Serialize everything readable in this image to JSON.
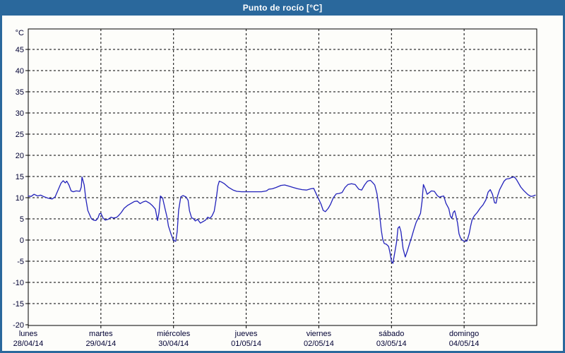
{
  "header": {
    "title": "Punto de rocío [°C]"
  },
  "colors": {
    "titlebar_bg": "#2a689c",
    "window_border": "#2a689c",
    "plot_bg": "#fdfdfa",
    "grid": "#000000",
    "axis_text": "#000033",
    "series_line": "#2222bb",
    "title_text": "#ffffff"
  },
  "chart_data": {
    "type": "line",
    "title": "Punto de rocío [°C]",
    "y_unit": "°C",
    "ylabel": "",
    "xlabel": "",
    "ylim": [
      -20,
      50
    ],
    "y_ticks": [
      45,
      40,
      35,
      30,
      25,
      20,
      15,
      10,
      5,
      0,
      -5,
      -10,
      -15,
      -20
    ],
    "grid": "dashed",
    "legend": "none",
    "x_days": [
      {
        "name": "lunes",
        "date": "28/04/14"
      },
      {
        "name": "martes",
        "date": "29/04/14"
      },
      {
        "name": "miércoles",
        "date": "30/04/14"
      },
      {
        "name": "jueves",
        "date": "01/05/14"
      },
      {
        "name": "viernes",
        "date": "02/05/14"
      },
      {
        "name": "sábado",
        "date": "03/05/14"
      },
      {
        "name": "domingo",
        "date": "04/05/14"
      }
    ],
    "series": [
      {
        "name": "Punto de rocío",
        "color": "#2222bb",
        "x_unit": "days_from_start",
        "points": [
          [
            0.0,
            10.4
          ],
          [
            0.04,
            10.3
          ],
          [
            0.08,
            10.8
          ],
          [
            0.13,
            10.4
          ],
          [
            0.17,
            10.6
          ],
          [
            0.22,
            10.2
          ],
          [
            0.27,
            9.9
          ],
          [
            0.33,
            9.7
          ],
          [
            0.37,
            10.2
          ],
          [
            0.41,
            11.8
          ],
          [
            0.45,
            13.4
          ],
          [
            0.48,
            14.0
          ],
          [
            0.51,
            13.5
          ],
          [
            0.53,
            13.9
          ],
          [
            0.56,
            13.0
          ],
          [
            0.59,
            11.6
          ],
          [
            0.62,
            11.4
          ],
          [
            0.66,
            11.6
          ],
          [
            0.71,
            11.5
          ],
          [
            0.73,
            12.5
          ],
          [
            0.74,
            14.9
          ],
          [
            0.77,
            13.0
          ],
          [
            0.79,
            10.0
          ],
          [
            0.82,
            7.0
          ],
          [
            0.85,
            5.8
          ],
          [
            0.87,
            5.0
          ],
          [
            0.9,
            4.7
          ],
          [
            0.93,
            4.6
          ],
          [
            0.96,
            5.2
          ],
          [
            0.98,
            6.2
          ],
          [
            1.0,
            6.3
          ],
          [
            1.03,
            5.2
          ],
          [
            1.06,
            4.7
          ],
          [
            1.1,
            4.9
          ],
          [
            1.14,
            5.4
          ],
          [
            1.17,
            5.2
          ],
          [
            1.21,
            5.3
          ],
          [
            1.24,
            5.7
          ],
          [
            1.28,
            6.5
          ],
          [
            1.32,
            7.5
          ],
          [
            1.37,
            8.2
          ],
          [
            1.42,
            8.7
          ],
          [
            1.46,
            9.1
          ],
          [
            1.5,
            9.2
          ],
          [
            1.54,
            8.6
          ],
          [
            1.58,
            9.0
          ],
          [
            1.62,
            9.2
          ],
          [
            1.67,
            8.7
          ],
          [
            1.71,
            8.1
          ],
          [
            1.75,
            7.3
          ],
          [
            1.78,
            4.6
          ],
          [
            1.8,
            6.5
          ],
          [
            1.82,
            10.4
          ],
          [
            1.85,
            9.9
          ],
          [
            1.88,
            7.6
          ],
          [
            1.91,
            5.4
          ],
          [
            1.93,
            3.3
          ],
          [
            1.97,
            1.2
          ],
          [
            2.0,
            -0.1
          ],
          [
            2.03,
            -0.3
          ],
          [
            2.05,
            2.0
          ],
          [
            2.07,
            7.0
          ],
          [
            2.1,
            10.2
          ],
          [
            2.13,
            10.5
          ],
          [
            2.17,
            10.2
          ],
          [
            2.2,
            9.4
          ],
          [
            2.22,
            6.9
          ],
          [
            2.25,
            5.2
          ],
          [
            2.27,
            5.1
          ],
          [
            2.3,
            4.5
          ],
          [
            2.33,
            4.9
          ],
          [
            2.37,
            4.0
          ],
          [
            2.4,
            4.3
          ],
          [
            2.44,
            4.7
          ],
          [
            2.47,
            5.4
          ],
          [
            2.5,
            5.1
          ],
          [
            2.53,
            5.7
          ],
          [
            2.56,
            6.8
          ],
          [
            2.59,
            10.0
          ],
          [
            2.61,
            12.8
          ],
          [
            2.63,
            13.9
          ],
          [
            2.66,
            13.7
          ],
          [
            2.7,
            13.3
          ],
          [
            2.76,
            12.4
          ],
          [
            2.82,
            11.8
          ],
          [
            2.87,
            11.5
          ],
          [
            2.94,
            11.4
          ],
          [
            3.01,
            11.4
          ],
          [
            3.11,
            11.4
          ],
          [
            3.21,
            11.4
          ],
          [
            3.28,
            11.6
          ],
          [
            3.31,
            12.0
          ],
          [
            3.36,
            12.1
          ],
          [
            3.41,
            12.4
          ],
          [
            3.48,
            12.9
          ],
          [
            3.53,
            13.0
          ],
          [
            3.59,
            12.7
          ],
          [
            3.65,
            12.4
          ],
          [
            3.71,
            12.1
          ],
          [
            3.77,
            11.9
          ],
          [
            3.83,
            11.8
          ],
          [
            3.89,
            12.1
          ],
          [
            3.93,
            12.2
          ],
          [
            3.97,
            10.7
          ],
          [
            4.0,
            9.6
          ],
          [
            4.03,
            8.5
          ],
          [
            4.06,
            7.0
          ],
          [
            4.09,
            6.7
          ],
          [
            4.13,
            7.5
          ],
          [
            4.16,
            8.4
          ],
          [
            4.2,
            10.0
          ],
          [
            4.24,
            10.9
          ],
          [
            4.28,
            11.0
          ],
          [
            4.32,
            11.2
          ],
          [
            4.36,
            12.4
          ],
          [
            4.4,
            13.1
          ],
          [
            4.45,
            13.3
          ],
          [
            4.5,
            13.1
          ],
          [
            4.55,
            12.0
          ],
          [
            4.59,
            11.8
          ],
          [
            4.63,
            13.0
          ],
          [
            4.67,
            13.9
          ],
          [
            4.71,
            14.1
          ],
          [
            4.74,
            13.6
          ],
          [
            4.77,
            13.0
          ],
          [
            4.8,
            11.0
          ],
          [
            4.82,
            8.5
          ],
          [
            4.84,
            5.5
          ],
          [
            4.86,
            2.3
          ],
          [
            4.88,
            0.2
          ],
          [
            4.9,
            -0.8
          ],
          [
            4.93,
            -1.0
          ],
          [
            4.96,
            -1.5
          ],
          [
            4.98,
            -3.0
          ],
          [
            5.0,
            -5.0
          ],
          [
            5.02,
            -5.5
          ],
          [
            5.04,
            -3.5
          ],
          [
            5.07,
            -0.5
          ],
          [
            5.09,
            2.8
          ],
          [
            5.11,
            3.2
          ],
          [
            5.13,
            2.0
          ],
          [
            5.16,
            -2.0
          ],
          [
            5.19,
            -4.0
          ],
          [
            5.22,
            -2.5
          ],
          [
            5.25,
            -0.8
          ],
          [
            5.28,
            0.8
          ],
          [
            5.31,
            2.6
          ],
          [
            5.34,
            4.2
          ],
          [
            5.37,
            5.2
          ],
          [
            5.4,
            6.3
          ],
          [
            5.42,
            9.0
          ],
          [
            5.44,
            13.1
          ],
          [
            5.47,
            11.9
          ],
          [
            5.49,
            10.8
          ],
          [
            5.52,
            11.2
          ],
          [
            5.55,
            11.6
          ],
          [
            5.59,
            11.5
          ],
          [
            5.63,
            10.5
          ],
          [
            5.66,
            10.1
          ],
          [
            5.69,
            10.3
          ],
          [
            5.72,
            10.4
          ],
          [
            5.75,
            8.7
          ],
          [
            5.79,
            7.4
          ],
          [
            5.81,
            5.7
          ],
          [
            5.83,
            5.1
          ],
          [
            5.85,
            6.5
          ],
          [
            5.87,
            6.9
          ],
          [
            5.89,
            5.6
          ],
          [
            5.91,
            4.0
          ],
          [
            5.93,
            1.5
          ],
          [
            5.95,
            0.5
          ],
          [
            5.98,
            -0.1
          ],
          [
            6.01,
            -0.3
          ],
          [
            6.04,
            -0.2
          ],
          [
            6.07,
            1.5
          ],
          [
            6.09,
            3.3
          ],
          [
            6.11,
            4.8
          ],
          [
            6.14,
            5.7
          ],
          [
            6.18,
            6.5
          ],
          [
            6.22,
            7.5
          ],
          [
            6.26,
            8.3
          ],
          [
            6.3,
            9.5
          ],
          [
            6.33,
            11.3
          ],
          [
            6.36,
            11.9
          ],
          [
            6.39,
            10.8
          ],
          [
            6.42,
            8.8
          ],
          [
            6.44,
            8.7
          ],
          [
            6.46,
            10.4
          ],
          [
            6.49,
            11.9
          ],
          [
            6.52,
            12.9
          ],
          [
            6.55,
            13.9
          ],
          [
            6.58,
            14.4
          ],
          [
            6.62,
            14.5
          ],
          [
            6.66,
            14.8
          ],
          [
            6.69,
            14.9
          ],
          [
            6.72,
            14.3
          ],
          [
            6.75,
            13.4
          ],
          [
            6.78,
            12.5
          ],
          [
            6.82,
            11.7
          ],
          [
            6.85,
            11.2
          ],
          [
            6.88,
            10.7
          ],
          [
            6.92,
            10.3
          ],
          [
            6.95,
            10.4
          ],
          [
            6.98,
            10.6
          ]
        ]
      }
    ]
  }
}
